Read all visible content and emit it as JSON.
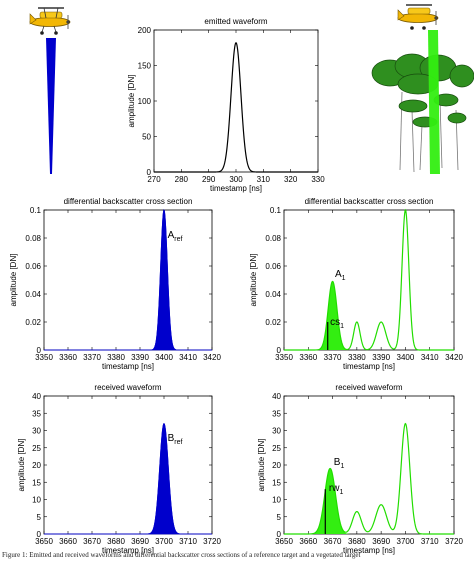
{
  "caption": "Figure 1: Emitted and received waveforms and differential backscatter cross sections of a reference target and a vegetated target",
  "colors": {
    "blue": "#0000cc",
    "green": "#22dd00",
    "green_fill": "#33ee11",
    "black": "#000000",
    "foliage": "#2f8f1f"
  },
  "icons": {
    "plane_left": "airplane-icon",
    "plane_right": "airplane-icon",
    "trees": "tree-canopy-icon"
  },
  "chart_data": [
    {
      "id": "emitted",
      "type": "line",
      "title": "emitted waveform",
      "xlabel": "timestamp [ns]",
      "ylabel": "amplitude [DN]",
      "xlim": [
        270,
        330
      ],
      "ylim": [
        0,
        200
      ],
      "xticks": [
        270,
        280,
        290,
        300,
        310,
        320,
        330
      ],
      "yticks": [
        0,
        50,
        100,
        150,
        200
      ],
      "color": "#000000",
      "fill": false,
      "pulses": [
        {
          "center": 300,
          "amp": 182,
          "sigma": 1.8
        }
      ],
      "annotations": []
    },
    {
      "id": "dbcs_ref",
      "type": "area",
      "title": "differential backscatter cross section",
      "xlabel": "timestamp [ns]",
      "ylabel": "amplitude [DN]",
      "xlim": [
        3350,
        3420
      ],
      "ylim": [
        0,
        0.1
      ],
      "xticks": [
        3350,
        3360,
        3370,
        3380,
        3390,
        3400,
        3410,
        3420
      ],
      "yticks": [
        0,
        0.02,
        0.04,
        0.06,
        0.08,
        0.1
      ],
      "color": "#0000cc",
      "fill": true,
      "pulses": [
        {
          "center": 3400,
          "amp": 0.1,
          "sigma": 1.4
        }
      ],
      "annotations": [
        {
          "main": "A",
          "sub": "ref",
          "x": 3401.5,
          "y": 0.08
        }
      ]
    },
    {
      "id": "dbcs_veg",
      "type": "area",
      "title": "differential backscatter cross section",
      "xlabel": "timestamp [ns]",
      "ylabel": "amplitude [DN]",
      "xlim": [
        3350,
        3420
      ],
      "ylim": [
        0,
        0.1
      ],
      "xticks": [
        3350,
        3360,
        3370,
        3380,
        3390,
        3400,
        3410,
        3420
      ],
      "yticks": [
        0,
        0.02,
        0.04,
        0.06,
        0.08,
        0.1
      ],
      "color": "#22dd00",
      "fill": false,
      "pulses": [
        {
          "center": 3370,
          "amp": 0.049,
          "sigma": 1.8
        },
        {
          "center": 3380,
          "amp": 0.02,
          "sigma": 1.3
        },
        {
          "center": 3390,
          "amp": 0.02,
          "sigma": 1.9
        },
        {
          "center": 3400,
          "amp": 0.1,
          "sigma": 1.4
        }
      ],
      "filled_pulse": 0,
      "marker_line": {
        "x": 3368,
        "y0": 0,
        "y1": 0.02
      },
      "annotations": [
        {
          "main": "A",
          "sub": "1",
          "x": 3371,
          "y": 0.052
        },
        {
          "main": "cs",
          "sub": "1",
          "x": 3369,
          "y": 0.018
        }
      ]
    },
    {
      "id": "rw_ref",
      "type": "area",
      "title": "received waveform",
      "xlabel": "timestamp [ns]",
      "ylabel": "amplitude [DN]",
      "xlim": [
        3650,
        3720
      ],
      "ylim": [
        0,
        40
      ],
      "xticks": [
        3650,
        3660,
        3670,
        3680,
        3690,
        3700,
        3710,
        3720
      ],
      "yticks": [
        0,
        5,
        10,
        15,
        20,
        25,
        30,
        35,
        40
      ],
      "color": "#0000cc",
      "fill": true,
      "pulses": [
        {
          "center": 3700,
          "amp": 32,
          "sigma": 1.8
        }
      ],
      "annotations": [
        {
          "main": "B",
          "sub": "ref",
          "x": 3701.5,
          "y": 27
        }
      ]
    },
    {
      "id": "rw_veg",
      "type": "area",
      "title": "received waveform",
      "xlabel": "timestamp [ns]",
      "ylabel": "amplitude [DN]",
      "xlim": [
        3650,
        3720
      ],
      "ylim": [
        0,
        40
      ],
      "xticks": [
        3650,
        3660,
        3670,
        3680,
        3690,
        3700,
        3710,
        3720
      ],
      "yticks": [
        0,
        5,
        10,
        15,
        20,
        25,
        30,
        35,
        40
      ],
      "color": "#22dd00",
      "fill": false,
      "pulses": [
        {
          "center": 3669,
          "amp": 19,
          "sigma": 2.2
        },
        {
          "center": 3680,
          "amp": 6.5,
          "sigma": 1.8
        },
        {
          "center": 3690,
          "amp": 8.5,
          "sigma": 2.2
        },
        {
          "center": 3700,
          "amp": 32,
          "sigma": 1.8
        }
      ],
      "filled_pulse": 0,
      "marker_line": {
        "x": 3667,
        "y0": 0,
        "y1": 13
      },
      "annotations": [
        {
          "main": "B",
          "sub": "1",
          "x": 3670.5,
          "y": 20
        },
        {
          "main": "rw",
          "sub": "1",
          "x": 3668.5,
          "y": 12.5
        }
      ]
    }
  ]
}
